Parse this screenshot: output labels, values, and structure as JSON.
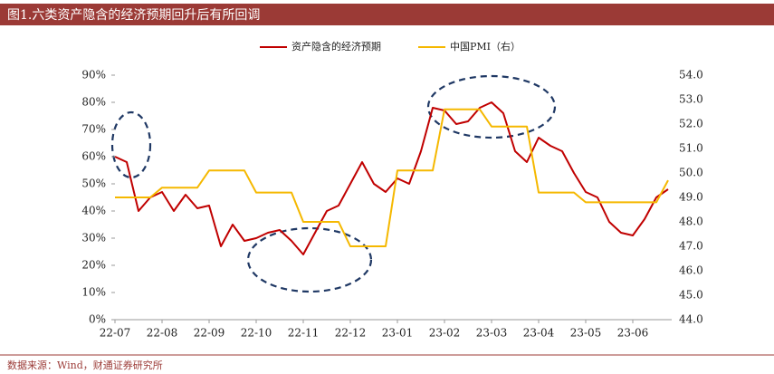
{
  "chart_data": {
    "type": "line",
    "title": "图1.六类资产隐含的经济预期回升后有所回调",
    "source": "数据来源：Wind，财通证券研究所",
    "categories": [
      "22-07",
      null,
      null,
      null,
      "22-08",
      null,
      null,
      null,
      "22-09",
      null,
      null,
      null,
      "22-10",
      null,
      null,
      null,
      "22-11",
      null,
      null,
      null,
      "22-12",
      null,
      null,
      null,
      "23-01",
      null,
      null,
      null,
      "23-02",
      null,
      null,
      null,
      "23-03",
      null,
      null,
      null,
      "23-04",
      null,
      null,
      null,
      "23-05",
      null,
      null,
      null,
      "23-06",
      null,
      null,
      null
    ],
    "series": [
      {
        "name": "资产隐含的经济预期",
        "color": "#c00000",
        "axis": "y",
        "values": [
          60,
          58,
          40,
          45,
          47,
          40,
          46,
          41,
          42,
          27,
          35,
          29,
          30,
          32,
          33,
          29,
          24,
          32,
          40,
          42,
          50,
          58,
          50,
          47,
          52,
          50,
          62,
          78,
          77,
          72,
          73,
          78,
          80,
          76,
          62,
          58,
          67,
          64,
          62,
          54,
          47,
          45,
          36,
          32,
          31,
          37,
          45,
          48
        ]
      },
      {
        "name": "中国PMI（右）",
        "color": "#f5b800",
        "axis": "y2",
        "values": [
          49.0,
          49.0,
          49.0,
          49.0,
          49.4,
          49.4,
          49.4,
          49.4,
          50.1,
          50.1,
          50.1,
          50.1,
          49.2,
          49.2,
          49.2,
          49.2,
          48.0,
          48.0,
          48.0,
          48.0,
          47.0,
          47.0,
          47.0,
          47.0,
          50.1,
          50.1,
          50.1,
          50.1,
          52.6,
          52.6,
          52.6,
          52.6,
          51.9,
          51.9,
          51.9,
          51.9,
          49.2,
          49.2,
          49.2,
          49.2,
          48.8,
          48.8,
          48.8,
          48.8,
          48.8,
          48.8,
          48.8,
          49.7
        ]
      }
    ],
    "ylim": [
      0,
      90
    ],
    "yticks": [
      {
        "value": 0,
        "label": "0%"
      },
      {
        "value": 10,
        "label": "10%"
      },
      {
        "value": 20,
        "label": "20%"
      },
      {
        "value": 30,
        "label": "30%"
      },
      {
        "value": 40,
        "label": "40%"
      },
      {
        "value": 50,
        "label": "50%"
      },
      {
        "value": 60,
        "label": "60%"
      },
      {
        "value": 70,
        "label": "70%"
      },
      {
        "value": 80,
        "label": "80%"
      },
      {
        "value": 90,
        "label": "90%"
      }
    ],
    "y2lim": [
      44,
      54
    ],
    "y2ticks": [
      {
        "value": 44,
        "label": "44.0"
      },
      {
        "value": 45,
        "label": "45.0"
      },
      {
        "value": 46,
        "label": "46.0"
      },
      {
        "value": 47,
        "label": "47.0"
      },
      {
        "value": 48,
        "label": "48.0"
      },
      {
        "value": 49,
        "label": "49.0"
      },
      {
        "value": 50,
        "label": "50.0"
      },
      {
        "value": 51,
        "label": "51.0"
      },
      {
        "value": 52,
        "label": "52.0"
      },
      {
        "value": 53,
        "label": "53.0"
      },
      {
        "value": 54,
        "label": "54.0"
      }
    ],
    "legend": "top"
  }
}
